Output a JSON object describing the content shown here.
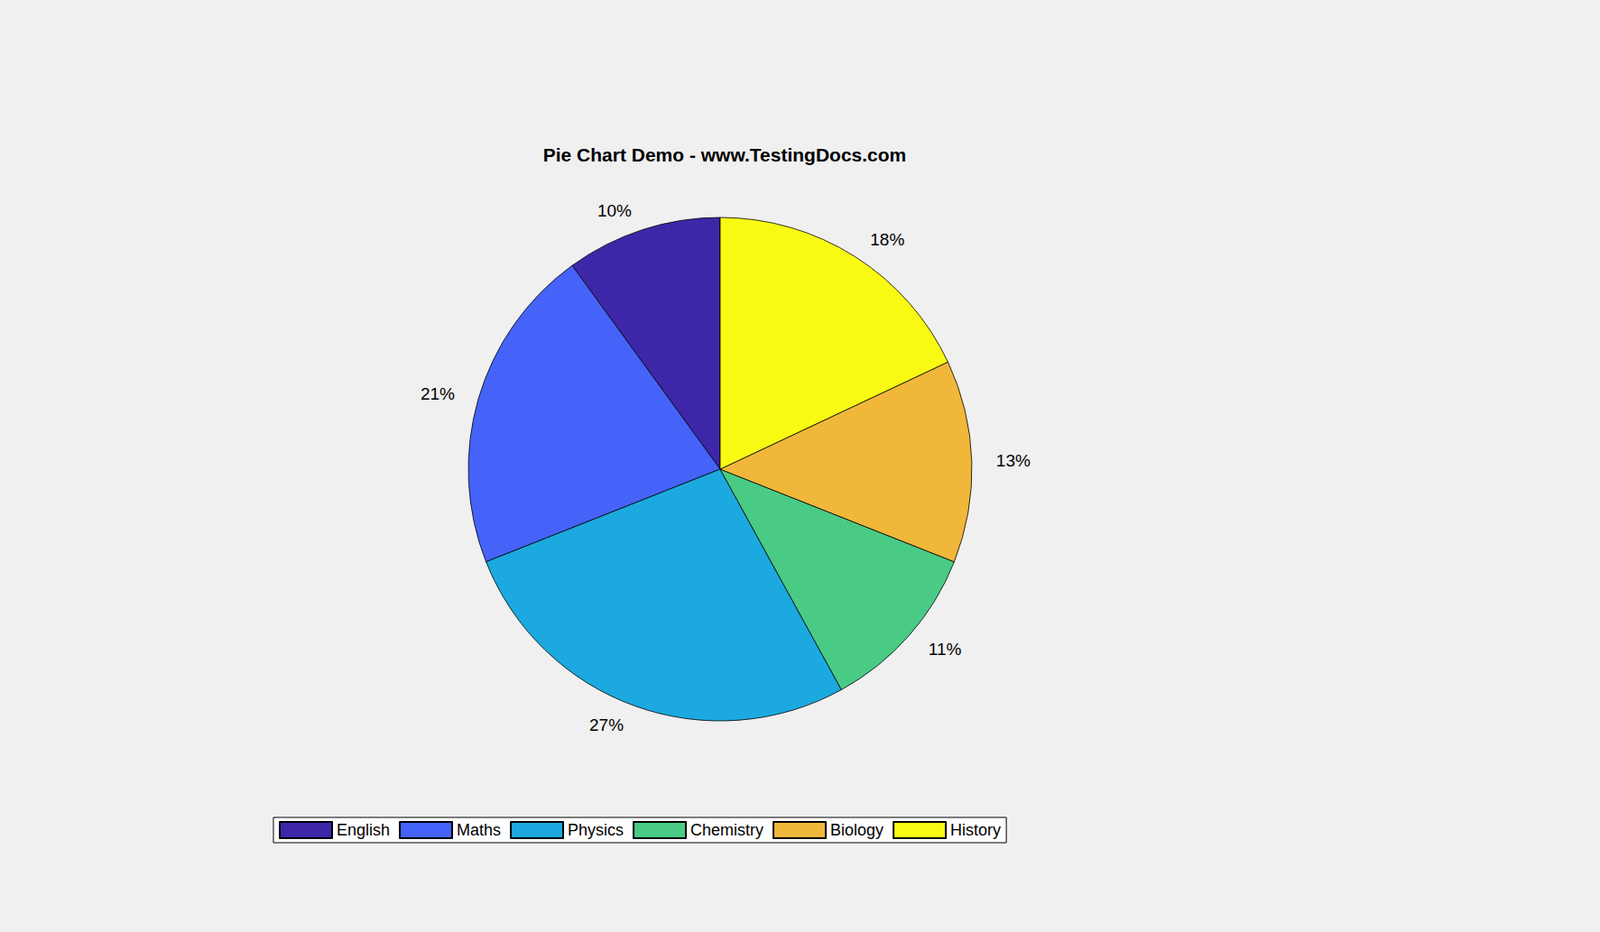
{
  "chart_data": {
    "type": "pie",
    "title": "Pie Chart Demo - www.TestingDocs.com",
    "categories": [
      "English",
      "Maths",
      "Physics",
      "Chemistry",
      "Biology",
      "History"
    ],
    "values": [
      10,
      21,
      27,
      11,
      13,
      18
    ],
    "value_labels": [
      "10%",
      "21%",
      "27%",
      "11%",
      "13%",
      "18%"
    ],
    "colors": [
      "#3e26a8",
      "#4563f9",
      "#1ca9df",
      "#49cb86",
      "#f0b73a",
      "#f9fa14"
    ],
    "legend": "bottom",
    "data_labels": true
  }
}
